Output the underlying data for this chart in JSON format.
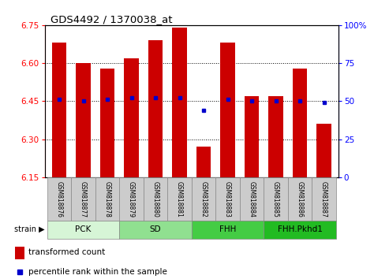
{
  "title": "GDS4492 / 1370038_at",
  "samples": [
    "GSM818876",
    "GSM818877",
    "GSM818878",
    "GSM818879",
    "GSM818880",
    "GSM818881",
    "GSM818882",
    "GSM818883",
    "GSM818884",
    "GSM818885",
    "GSM818886",
    "GSM818887"
  ],
  "bar_values": [
    6.68,
    6.6,
    6.58,
    6.62,
    6.69,
    6.74,
    6.27,
    6.68,
    6.47,
    6.47,
    6.58,
    6.36
  ],
  "percentile_values": [
    51,
    50,
    51,
    52,
    52,
    52,
    44,
    51,
    50,
    50,
    50,
    49
  ],
  "bar_color": "#cc0000",
  "dot_color": "#0000cc",
  "ymin": 6.15,
  "ymax": 6.75,
  "y_ticks": [
    6.15,
    6.3,
    6.45,
    6.6,
    6.75
  ],
  "y_right_ticks": [
    0,
    25,
    50,
    75,
    100
  ],
  "y_right_labels": [
    "0",
    "25",
    "50",
    "75",
    "100%"
  ],
  "grid_lines": [
    6.3,
    6.45,
    6.6
  ],
  "group_defs": [
    {
      "label": "PCK",
      "start": 0,
      "end": 2,
      "color": "#d6f5d6"
    },
    {
      "label": "SD",
      "start": 3,
      "end": 5,
      "color": "#90e090"
    },
    {
      "label": "FHH",
      "start": 6,
      "end": 8,
      "color": "#44cc44"
    },
    {
      "label": "FHH.Pkhd1",
      "start": 9,
      "end": 11,
      "color": "#22bb22"
    }
  ],
  "legend_tc": "transformed count",
  "legend_pr": "percentile rank within the sample",
  "bar_width": 0.6
}
